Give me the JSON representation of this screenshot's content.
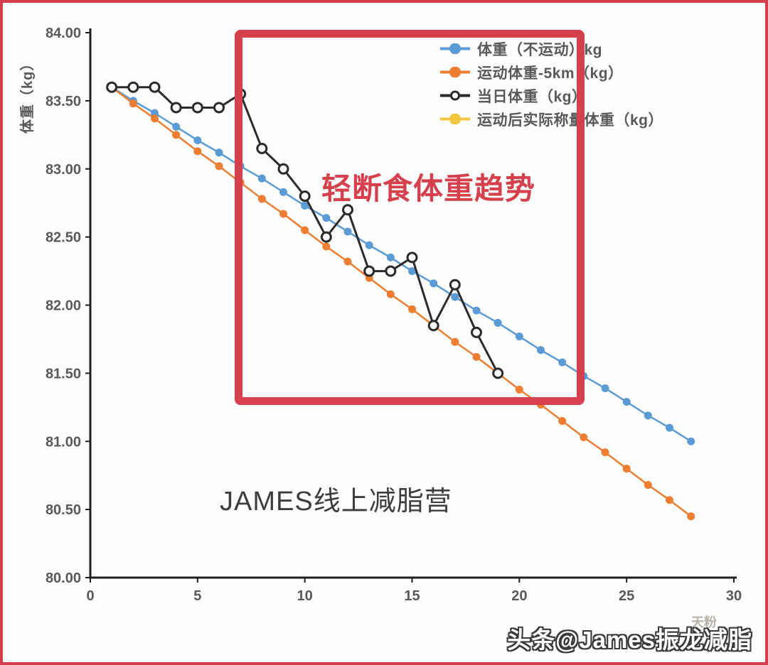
{
  "colors": {
    "red_accent": "#d5404c",
    "series_blue": "#5b9bd5",
    "series_orange": "#ed7d31",
    "series_black": "#2b2b2b",
    "series_yellow": "#f3c73e",
    "tick_text": "#595959",
    "axis_line": "#1f1f1f"
  },
  "annotations": {
    "red_box_label": "轻断食体重趋势",
    "campaign_label": "JAMES线上减脂营",
    "watermark_main": "头条@James振龙减脂",
    "watermark_small": "天粉"
  },
  "chart_data": {
    "type": "line",
    "title": "",
    "xlabel": "",
    "ylabel": "体重（kg）",
    "xlim": [
      0,
      30
    ],
    "ylim": [
      80,
      84
    ],
    "x_ticks": [
      0,
      5,
      10,
      15,
      20,
      25,
      30
    ],
    "y_ticks": [
      "84.00",
      "83.50",
      "83.00",
      "82.50",
      "82.00",
      "81.50",
      "81.00",
      "80.50",
      "80.00"
    ],
    "grid": false,
    "legend_position": "top-right",
    "series": [
      {
        "name": "体重（不运动）kg",
        "color": "#5b9bd5",
        "marker": "filled",
        "x": [
          1,
          2,
          3,
          4,
          5,
          6,
          7,
          8,
          9,
          10,
          11,
          12,
          13,
          14,
          15,
          16,
          17,
          18,
          19,
          20,
          21,
          22,
          23,
          24,
          25,
          26,
          27,
          28
        ],
        "values": [
          83.6,
          83.5,
          83.41,
          83.31,
          83.21,
          83.12,
          83.02,
          82.93,
          82.83,
          82.73,
          82.64,
          82.54,
          82.44,
          82.35,
          82.25,
          82.16,
          82.06,
          81.96,
          81.87,
          81.77,
          81.67,
          81.58,
          81.48,
          81.39,
          81.29,
          81.19,
          81.1,
          81.0
        ]
      },
      {
        "name": "运动体重-5km（kg）",
        "color": "#ed7d31",
        "marker": "filled",
        "x": [
          1,
          2,
          3,
          4,
          5,
          6,
          7,
          8,
          9,
          10,
          11,
          12,
          13,
          14,
          15,
          16,
          17,
          18,
          19,
          20,
          21,
          22,
          23,
          24,
          25,
          26,
          27,
          28
        ],
        "values": [
          83.6,
          83.48,
          83.37,
          83.25,
          83.13,
          83.02,
          82.9,
          82.78,
          82.67,
          82.55,
          82.43,
          82.32,
          82.2,
          82.08,
          81.97,
          81.85,
          81.73,
          81.62,
          81.5,
          81.38,
          81.27,
          81.15,
          81.03,
          80.92,
          80.8,
          80.68,
          80.57,
          80.45
        ]
      },
      {
        "name": "当日体重（kg）",
        "color": "#2b2b2b",
        "marker": "open",
        "x": [
          1,
          2,
          3,
          4,
          5,
          6,
          7,
          8,
          9,
          10,
          11,
          12,
          13,
          14,
          15,
          16,
          17,
          18,
          19
        ],
        "values": [
          83.6,
          83.6,
          83.6,
          83.45,
          83.45,
          83.45,
          83.55,
          83.15,
          83.0,
          82.8,
          82.5,
          82.7,
          82.25,
          82.25,
          82.35,
          81.85,
          82.15,
          81.8,
          81.5
        ]
      },
      {
        "name": "运动后实际称量体重（kg）",
        "color": "#f3c73e",
        "marker": "filled",
        "x": [],
        "values": []
      }
    ]
  }
}
